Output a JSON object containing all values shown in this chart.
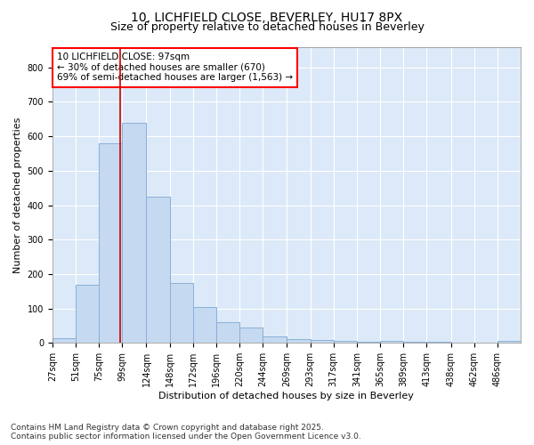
{
  "title_line1": "10, LICHFIELD CLOSE, BEVERLEY, HU17 8PX",
  "title_line2": "Size of property relative to detached houses in Beverley",
  "xlabel": "Distribution of detached houses by size in Beverley",
  "ylabel": "Number of detached properties",
  "annotation_line1": "10 LICHFIELD CLOSE: 97sqm",
  "annotation_line2": "← 30% of detached houses are smaller (670)",
  "annotation_line3": "69% of semi-detached houses are larger (1,563) →",
  "property_size": 97,
  "bar_color": "#c5d9f0",
  "bar_edge_color": "#8ab0d8",
  "vline_color": "#cc0000",
  "plot_bg_color": "#dce9f8",
  "fig_bg_color": "#ffffff",
  "bins": [
    27,
    51,
    75,
    99,
    124,
    148,
    172,
    196,
    220,
    244,
    269,
    293,
    317,
    341,
    365,
    389,
    413,
    438,
    462,
    486,
    510
  ],
  "counts": [
    15,
    170,
    580,
    640,
    425,
    175,
    105,
    60,
    45,
    20,
    10,
    8,
    5,
    4,
    5,
    4,
    3,
    2,
    2,
    5
  ],
  "ylim": [
    0,
    860
  ],
  "yticks": [
    0,
    100,
    200,
    300,
    400,
    500,
    600,
    700,
    800
  ],
  "footer_line1": "Contains HM Land Registry data © Crown copyright and database right 2025.",
  "footer_line2": "Contains public sector information licensed under the Open Government Licence v3.0.",
  "title_fontsize": 10,
  "subtitle_fontsize": 9,
  "annotation_fontsize": 7.5,
  "axis_label_fontsize": 8,
  "tick_fontsize": 7,
  "footer_fontsize": 6.5
}
